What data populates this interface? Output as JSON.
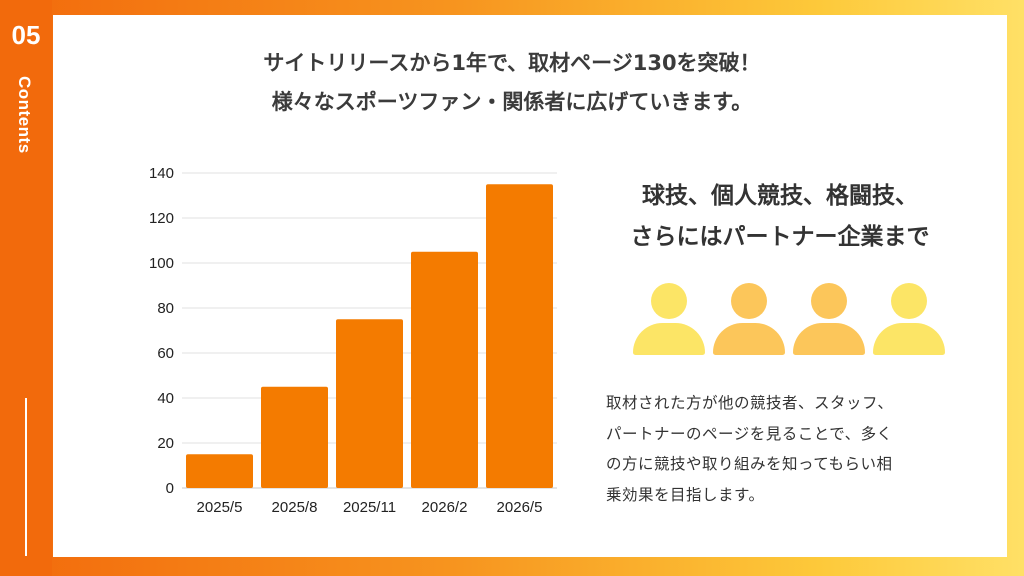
{
  "sidebar": {
    "number": "05",
    "label": "Contents"
  },
  "headline": {
    "line1": "サイトリリースから1年で、取材ページ130を突破！",
    "line2": "様々なスポーツファン・関係者に広げていきます。"
  },
  "chart_data": {
    "type": "bar",
    "categories": [
      "2025/5",
      "2025/8",
      "2025/11",
      "2026/2",
      "2026/5"
    ],
    "values": [
      15,
      45,
      75,
      105,
      135
    ],
    "ylim": [
      0,
      140
    ],
    "yticks": [
      0,
      20,
      40,
      60,
      80,
      100,
      120,
      140
    ],
    "title": "",
    "xlabel": "",
    "ylabel": "",
    "bar_color": "#f47b00",
    "grid": true
  },
  "subhead": {
    "line1": "球技、個人競技、格闘技、",
    "line2": "さらにはパートナー企業まで"
  },
  "people": {
    "icon": "person-icon",
    "colors": [
      "#fce566",
      "#fcc65a",
      "#fcc65a",
      "#fce566"
    ]
  },
  "description": {
    "lines": [
      "取材された方が他の競技者、スタッフ、",
      "パートナーのページを見ることで、多く",
      "の方に競技や取り組みを知ってもらい相",
      "乗効果を目指します。"
    ]
  },
  "colors": {
    "accent": "#f26a0c",
    "bar": "#f47b00"
  }
}
